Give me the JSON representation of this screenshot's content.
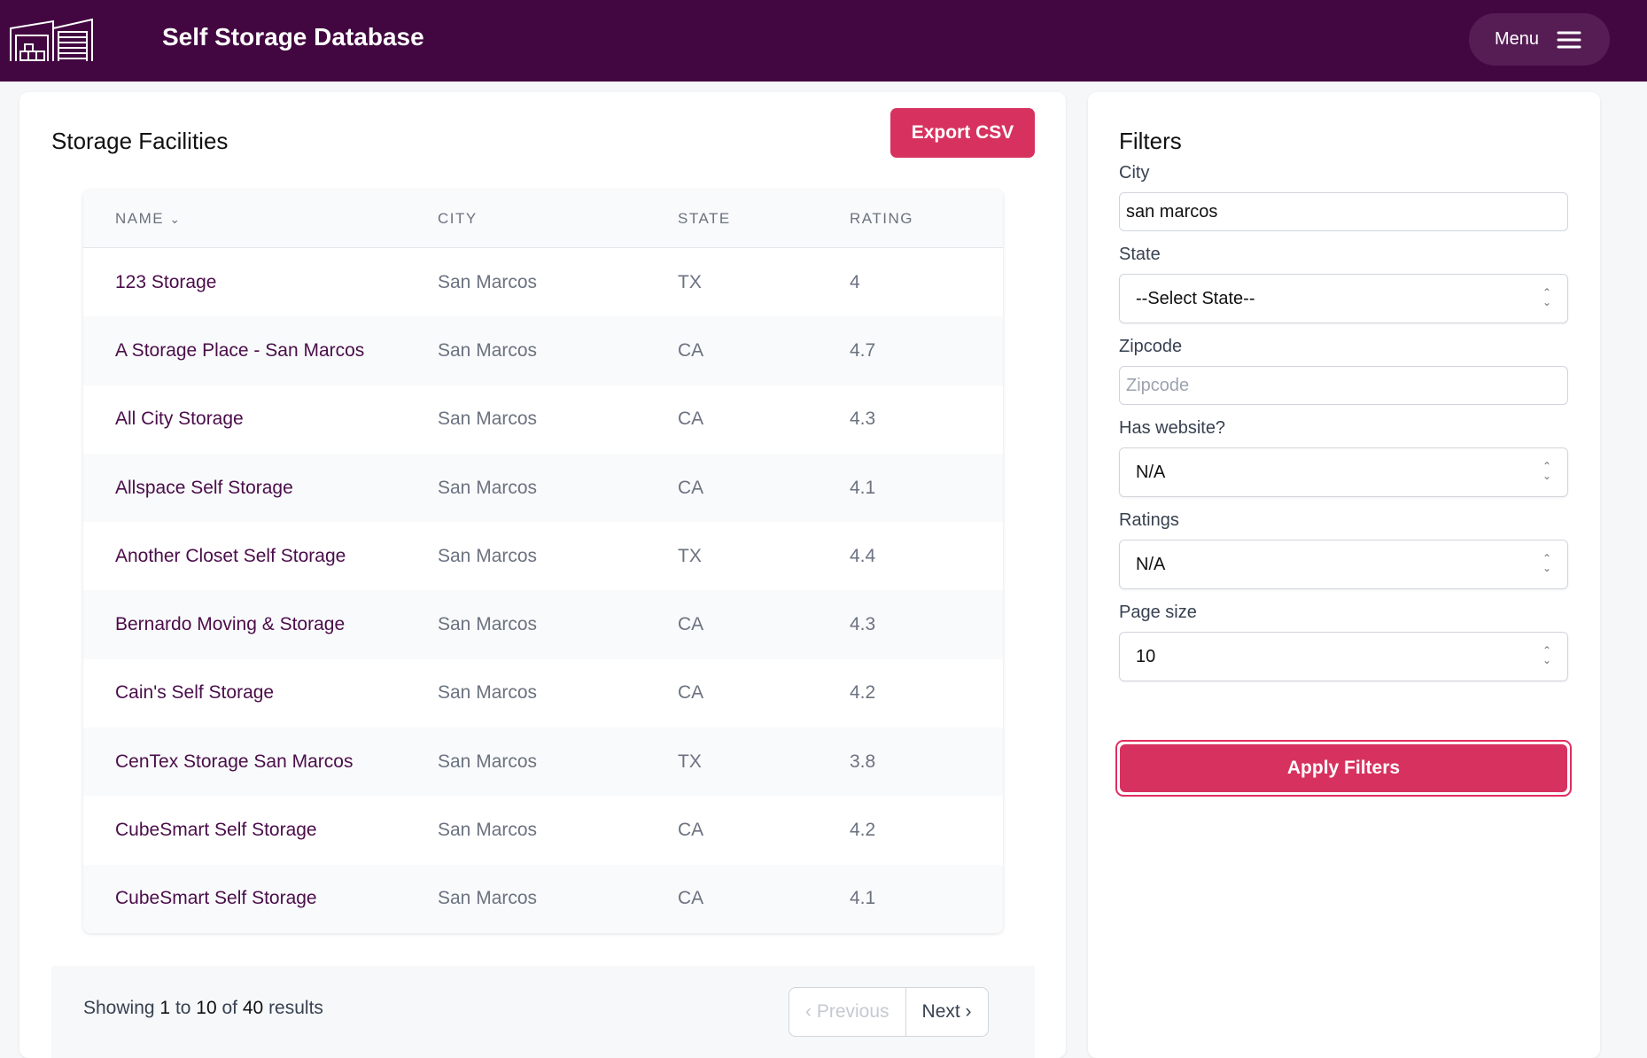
{
  "header": {
    "title": "Self Storage Database",
    "menu_label": "Menu"
  },
  "main": {
    "title": "Storage Facilities",
    "export_label": "Export CSV",
    "columns": [
      "NAME",
      "CITY",
      "STATE",
      "RATING"
    ],
    "rows": [
      {
        "name": "123 Storage",
        "city": "San Marcos",
        "state": "TX",
        "rating": "4"
      },
      {
        "name": "A Storage Place - San Marcos",
        "city": "San Marcos",
        "state": "CA",
        "rating": "4.7"
      },
      {
        "name": "All City Storage",
        "city": "San Marcos",
        "state": "CA",
        "rating": "4.3"
      },
      {
        "name": "Allspace Self Storage",
        "city": "San Marcos",
        "state": "CA",
        "rating": "4.1"
      },
      {
        "name": "Another Closet Self Storage",
        "city": "San Marcos",
        "state": "TX",
        "rating": "4.4"
      },
      {
        "name": "Bernardo Moving & Storage",
        "city": "San Marcos",
        "state": "CA",
        "rating": "4.3"
      },
      {
        "name": "Cain's Self Storage",
        "city": "San Marcos",
        "state": "CA",
        "rating": "4.2"
      },
      {
        "name": "CenTex Storage San Marcos",
        "city": "San Marcos",
        "state": "TX",
        "rating": "3.8"
      },
      {
        "name": "CubeSmart Self Storage",
        "city": "San Marcos",
        "state": "CA",
        "rating": "4.2"
      },
      {
        "name": "CubeSmart Self Storage",
        "city": "San Marcos",
        "state": "CA",
        "rating": "4.1"
      }
    ],
    "pagination": {
      "showing": "Showing",
      "from": "1",
      "to_word": "to",
      "to": "10",
      "of_word": "of",
      "total": "40",
      "results": "results",
      "prev": "Previous",
      "next": "Next"
    }
  },
  "filters": {
    "title": "Filters",
    "city_label": "City",
    "city_value": "san marcos",
    "state_label": "State",
    "state_value": "--Select State--",
    "zip_label": "Zipcode",
    "zip_placeholder": "Zipcode",
    "website_label": "Has website?",
    "website_value": "N/A",
    "ratings_label": "Ratings",
    "ratings_value": "N/A",
    "pagesize_label": "Page size",
    "pagesize_value": "10",
    "apply_label": "Apply Filters"
  }
}
